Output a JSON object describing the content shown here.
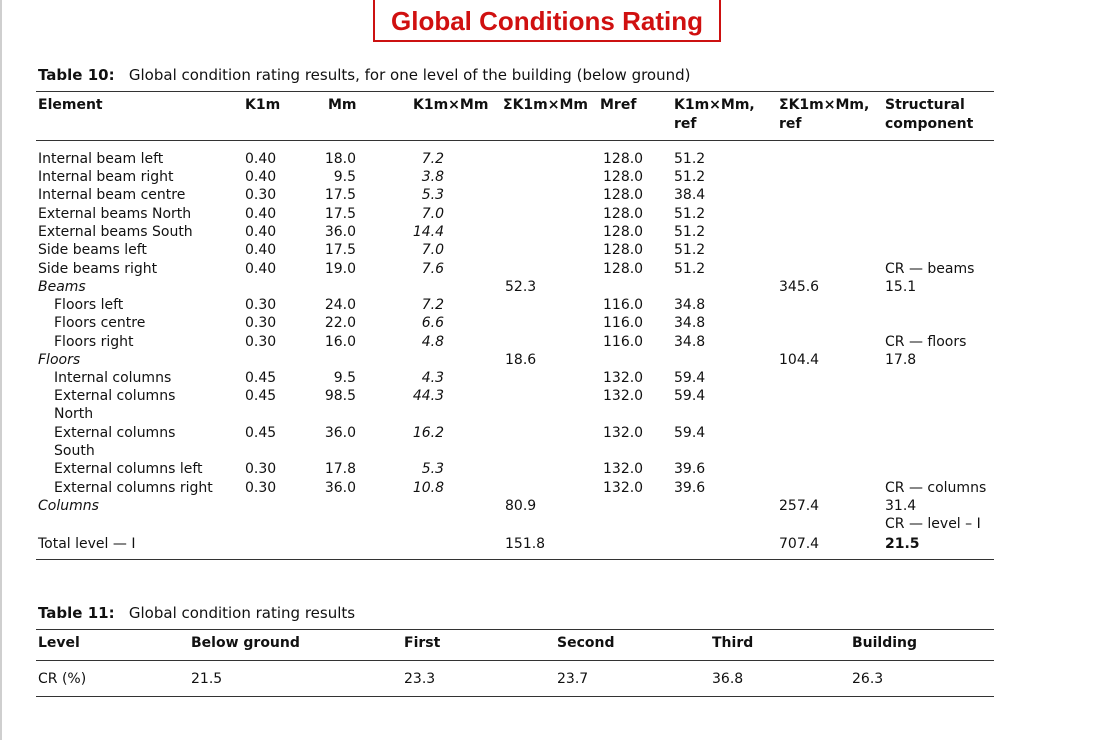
{
  "title": "Global Conditions Rating",
  "table10": {
    "label": "Table 10:",
    "caption": "Global condition rating results, for one level of the building (below ground)",
    "headers": {
      "element": "Element",
      "k1m": "K1m",
      "mm": "Mm",
      "k1mxmm": "K1m×Mm",
      "sum_k1mxmm": "ΣK1m×Mm",
      "mref": "Mref",
      "k1mxmm_ref_1": "K1m×Mm,",
      "k1mxmm_ref_2": "ref",
      "sum_ref_1": "ΣK1m×Mm,",
      "sum_ref_2": "ref",
      "structural_1": "Structural",
      "structural_2": "component"
    },
    "rows": [
      {
        "element": "Internal beam left",
        "k1m": "0.40",
        "mm": "18.0",
        "k1mxmm": "7.2",
        "mref": "128.0",
        "ref": "51.2"
      },
      {
        "element": "Internal beam right",
        "k1m": "0.40",
        "mm": "9.5",
        "k1mxmm": "3.8",
        "mref": "128.0",
        "ref": "51.2"
      },
      {
        "element": "Internal beam centre",
        "k1m": "0.30",
        "mm": "17.5",
        "k1mxmm": "5.3",
        "mref": "128.0",
        "ref": "38.4"
      },
      {
        "element": "External beams North",
        "k1m": "0.40",
        "mm": "17.5",
        "k1mxmm": "7.0",
        "mref": "128.0",
        "ref": "51.2"
      },
      {
        "element": "External beams South",
        "k1m": "0.40",
        "mm": "36.0",
        "k1mxmm": "14.4",
        "mref": "128.0",
        "ref": "51.2"
      },
      {
        "element": "Side beams left",
        "k1m": "0.40",
        "mm": "17.5",
        "k1mxmm": "7.0",
        "mref": "128.0",
        "ref": "51.2"
      },
      {
        "element": "Side beams right",
        "k1m": "0.40",
        "mm": "19.0",
        "k1mxmm": "7.6",
        "mref": "128.0",
        "ref": "51.2",
        "struct": "CR — beams"
      },
      {
        "element": "Beams",
        "sum": "52.3",
        "sumref": "345.6",
        "struct": "15.1"
      },
      {
        "element": "Floors left",
        "k1m": "0.30",
        "mm": "24.0",
        "k1mxmm": "7.2",
        "mref": "116.0",
        "ref": "34.8"
      },
      {
        "element": "Floors centre",
        "k1m": "0.30",
        "mm": "22.0",
        "k1mxmm": "6.6",
        "mref": "116.0",
        "ref": "34.8"
      },
      {
        "element": "Floors right",
        "k1m": "0.30",
        "mm": "16.0",
        "k1mxmm": "4.8",
        "mref": "116.0",
        "ref": "34.8",
        "struct": "CR — floors"
      },
      {
        "element": "Floors",
        "sum": "18.6",
        "sumref": "104.4",
        "struct": "17.8"
      },
      {
        "element": "Internal columns",
        "k1m": "0.45",
        "mm": "9.5",
        "k1mxmm": "4.3",
        "mref": "132.0",
        "ref": "59.4"
      },
      {
        "element": "External columns",
        "element2": "North",
        "k1m": "0.45",
        "mm": "98.5",
        "k1mxmm": "44.3",
        "mref": "132.0",
        "ref": "59.4"
      },
      {
        "element": "External columns",
        "element2": "South",
        "k1m": "0.45",
        "mm": "36.0",
        "k1mxmm": "16.2",
        "mref": "132.0",
        "ref": "59.4"
      },
      {
        "element": "External columns left",
        "k1m": "0.30",
        "mm": "17.8",
        "k1mxmm": "5.3",
        "mref": "132.0",
        "ref": "39.6"
      },
      {
        "element": "External columns right",
        "k1m": "0.30",
        "mm": "36.0",
        "k1mxmm": "10.8",
        "mref": "132.0",
        "ref": "39.6",
        "struct": "CR — columns"
      },
      {
        "element": "Columns",
        "sum": "80.9",
        "sumref": "257.4",
        "struct": "31.4",
        "struct2": "CR — level – I"
      },
      {
        "element": "Total level — I",
        "sum": "151.8",
        "sumref": "707.4",
        "struct": "21.5"
      }
    ]
  },
  "table11": {
    "label": "Table 11:",
    "caption": "Global condition rating results",
    "headers": [
      "Level",
      "Below ground",
      "First",
      "Second",
      "Third",
      "Building"
    ],
    "values": [
      "CR (%)",
      "21.5",
      "23.3",
      "23.7",
      "36.8",
      "26.3"
    ]
  }
}
